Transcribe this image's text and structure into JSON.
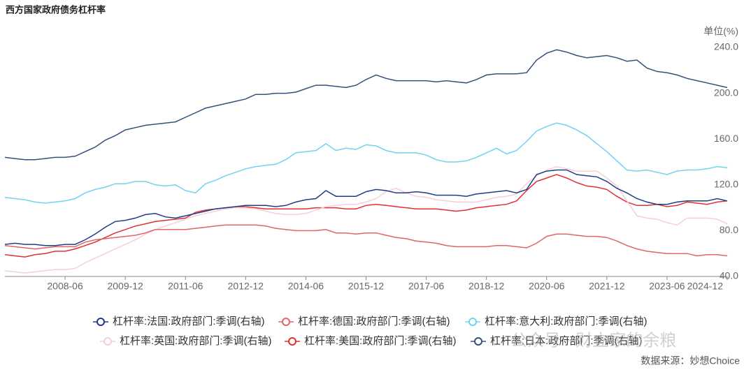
{
  "chart_data": {
    "type": "line",
    "title": "西方国家政府债务杠杆率",
    "y_axis_label": "单位(%)",
    "source": "数据来源：妙想Choice",
    "watermark": "公众号 · 财立家的余粮",
    "y_axis_side": "right",
    "grid": false,
    "legend": "bottom",
    "categories": [
      null,
      null,
      null,
      null,
      null,
      null,
      "2008-06",
      null,
      null,
      null,
      null,
      null,
      "2009-12",
      null,
      null,
      null,
      null,
      null,
      "2011-06",
      null,
      null,
      null,
      null,
      null,
      "2012-12",
      null,
      null,
      null,
      null,
      null,
      "2014-06",
      null,
      null,
      null,
      null,
      null,
      "2015-12",
      null,
      null,
      null,
      null,
      null,
      "2017-06",
      null,
      null,
      null,
      null,
      null,
      "2018-12",
      null,
      null,
      null,
      null,
      null,
      "2020-06",
      null,
      null,
      null,
      null,
      null,
      "2021-12",
      null,
      null,
      null,
      null,
      null,
      "2023-06",
      null,
      null,
      null,
      null,
      null,
      "2024-12"
    ],
    "ylim": [
      40,
      240
    ],
    "yticks": [
      {
        "value": 40,
        "label": "40.0"
      },
      {
        "value": 80,
        "label": "80.0"
      },
      {
        "value": 120,
        "label": "120.0"
      },
      {
        "value": 160,
        "label": "160.0"
      },
      {
        "value": 200,
        "label": "200.0"
      },
      {
        "value": 240,
        "label": "240.0"
      }
    ],
    "series": [
      {
        "name": "杠杆率:法国:政府部门:季调(右轴)",
        "color": "#1f3c88",
        "values": [
          68,
          69,
          68,
          68,
          67,
          67,
          68,
          68,
          72,
          77,
          83,
          88,
          89,
          91,
          94,
          95,
          92,
          91,
          93,
          95,
          97,
          99,
          100,
          101,
          102,
          102,
          102,
          101,
          102,
          105,
          107,
          108,
          115,
          110,
          110,
          110,
          114,
          116,
          115,
          113,
          113,
          114,
          113,
          111,
          111,
          111,
          110,
          112,
          113,
          114,
          115,
          113,
          116,
          129,
          132,
          133,
          133,
          129,
          128,
          127,
          123,
          117,
          113,
          108,
          105,
          103,
          103,
          105,
          106,
          106,
          106,
          108,
          106
        ]
      },
      {
        "name": "杠杆率:德国:政府部门:季调(右轴)",
        "color": "#e06666",
        "values": [
          67,
          66,
          65,
          64,
          65,
          66,
          66,
          66,
          70,
          72,
          73,
          74,
          75,
          76,
          78,
          81,
          81,
          81,
          81,
          82,
          83,
          84,
          85,
          85,
          85,
          85,
          84,
          82,
          81,
          80,
          80,
          80,
          81,
          78,
          78,
          77,
          78,
          78,
          76,
          74,
          73,
          71,
          70,
          69,
          67,
          66,
          66,
          66,
          66,
          67,
          67,
          66,
          65,
          69,
          75,
          77,
          77,
          76,
          75,
          75,
          74,
          71,
          67,
          64,
          62,
          61,
          60,
          60,
          60,
          58,
          59,
          59,
          58
        ]
      },
      {
        "name": "杠杆率:意大利:政府部门:季调(右轴)",
        "color": "#6fd3f0",
        "values": [
          109,
          108,
          107,
          105,
          104,
          105,
          106,
          108,
          113,
          116,
          118,
          121,
          121,
          123,
          123,
          120,
          119,
          120,
          115,
          113,
          121,
          124,
          128,
          131,
          134,
          136,
          137,
          138,
          142,
          148,
          149,
          150,
          156,
          150,
          152,
          151,
          155,
          154,
          150,
          148,
          148,
          148,
          146,
          142,
          140,
          140,
          141,
          144,
          148,
          152,
          147,
          150,
          158,
          167,
          171,
          174,
          172,
          168,
          163,
          156,
          149,
          141,
          133,
          132,
          133,
          131,
          129,
          132,
          133,
          133,
          134,
          136,
          135
        ]
      },
      {
        "name": "杠杆率:英国:政府部门:季调(右轴)",
        "color": "#f6cfd6",
        "values": [
          45,
          44,
          43,
          44,
          45,
          46,
          46,
          47,
          52,
          56,
          60,
          64,
          68,
          72,
          77,
          81,
          84,
          87,
          90,
          93,
          95,
          97,
          99,
          100,
          100,
          99,
          97,
          95,
          94,
          94,
          95,
          98,
          101,
          102,
          103,
          103,
          105,
          108,
          114,
          117,
          113,
          110,
          109,
          107,
          106,
          105,
          105,
          105,
          107,
          109,
          110,
          112,
          121,
          128,
          133,
          136,
          134,
          132,
          132,
          132,
          126,
          119,
          106,
          93,
          91,
          90,
          87,
          85,
          91,
          91,
          91,
          90,
          86
        ]
      },
      {
        "name": "杠杆率:美国:政府部门:季调(右轴)",
        "color": "#e03030",
        "values": [
          59,
          58,
          57,
          59,
          60,
          62,
          62,
          64,
          67,
          70,
          74,
          78,
          81,
          84,
          86,
          88,
          89,
          90,
          91,
          96,
          98,
          99,
          100,
          101,
          101,
          100,
          99,
          99,
          99,
          99,
          99,
          100,
          100,
          100,
          99,
          99,
          102,
          103,
          102,
          101,
          100,
          99,
          99,
          99,
          98,
          97,
          98,
          100,
          101,
          102,
          103,
          106,
          115,
          123,
          126,
          129,
          126,
          122,
          119,
          118,
          116,
          110,
          105,
          102,
          102,
          103,
          101,
          102,
          105,
          104,
          103,
          105,
          106
        ]
      },
      {
        "name": "杠杆率:日本:政府部门:季调(右轴)",
        "color": "#34507a",
        "values": [
          144,
          143,
          142,
          142,
          143,
          144,
          144,
          145,
          149,
          153,
          159,
          163,
          168,
          170,
          172,
          173,
          174,
          175,
          179,
          183,
          187,
          189,
          191,
          193,
          195,
          199,
          199,
          200,
          200,
          201,
          204,
          207,
          207,
          206,
          205,
          207,
          212,
          216,
          213,
          211,
          211,
          211,
          211,
          210,
          211,
          210,
          209,
          212,
          216,
          217,
          217,
          217,
          218,
          229,
          235,
          238,
          236,
          233,
          231,
          232,
          233,
          231,
          228,
          229,
          222,
          219,
          218,
          216,
          213,
          211,
          209,
          207,
          205
        ]
      }
    ]
  }
}
